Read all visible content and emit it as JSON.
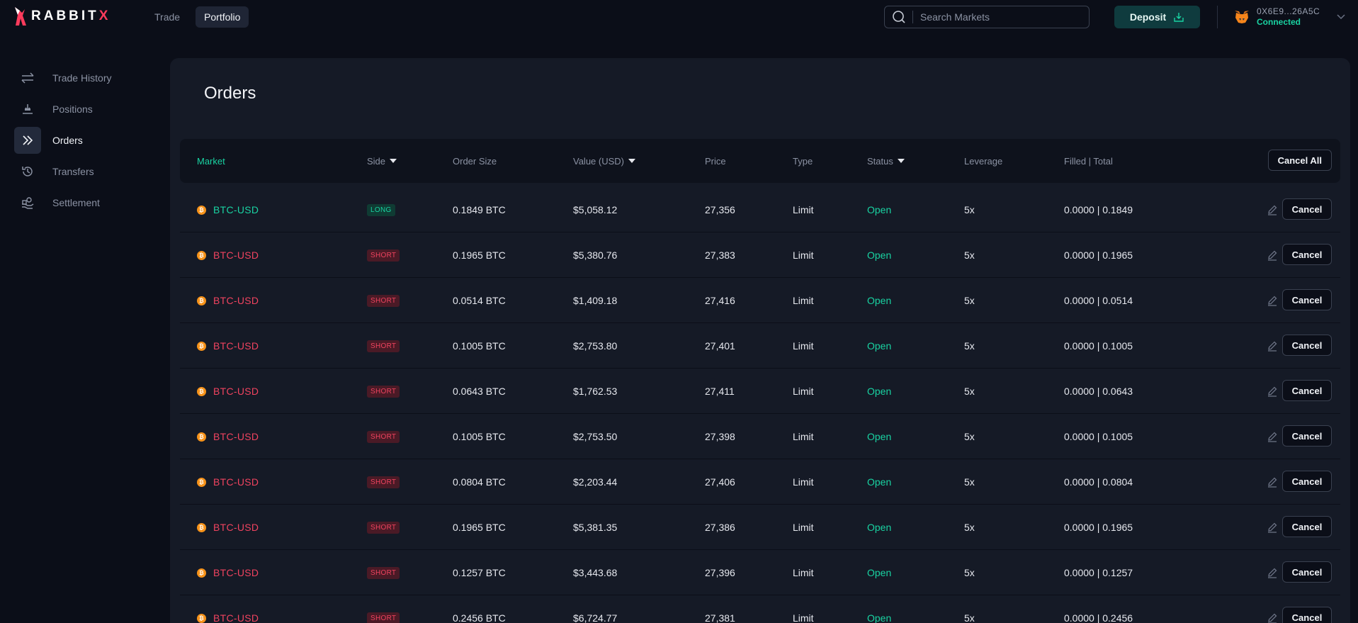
{
  "brand": {
    "name": "RABBIT",
    "name_x": "X"
  },
  "nav": [
    {
      "label": "Trade",
      "active": false
    },
    {
      "label": "Portfolio",
      "active": true
    }
  ],
  "search": {
    "placeholder": "Search Markets",
    "value": ""
  },
  "deposit": {
    "label": "Deposit"
  },
  "wallet": {
    "address": "0X6E9...26A5C",
    "status": "Connected"
  },
  "sidebar": [
    {
      "label": "Trade History",
      "icon": "arrows-swap-icon",
      "active": false
    },
    {
      "label": "Positions",
      "icon": "positions-icon",
      "active": false
    },
    {
      "label": "Orders",
      "icon": "double-chevron-right-icon",
      "active": true
    },
    {
      "label": "Transfers",
      "icon": "history-clock-icon",
      "active": false
    },
    {
      "label": "Settlement",
      "icon": "settlement-icon",
      "active": false
    }
  ],
  "page": {
    "title": "Orders"
  },
  "table": {
    "headers": {
      "market": "Market",
      "side": "Side",
      "order_size": "Order Size",
      "value": "Value (USD)",
      "price": "Price",
      "type": "Type",
      "status": "Status",
      "leverage": "Leverage",
      "filled": "Filled | Total"
    },
    "cancel_all": "Cancel All",
    "cancel_label": "Cancel",
    "rows": [
      {
        "market": "BTC-USD",
        "side": "LONG",
        "size": "0.1849 BTC",
        "value": "$5,058.12",
        "price": "27,356",
        "type": "Limit",
        "status": "Open",
        "leverage": "5x",
        "filled": "0.0000 | 0.1849"
      },
      {
        "market": "BTC-USD",
        "side": "SHORT",
        "size": "0.1965 BTC",
        "value": "$5,380.76",
        "price": "27,383",
        "type": "Limit",
        "status": "Open",
        "leverage": "5x",
        "filled": "0.0000 | 0.1965"
      },
      {
        "market": "BTC-USD",
        "side": "SHORT",
        "size": "0.0514 BTC",
        "value": "$1,409.18",
        "price": "27,416",
        "type": "Limit",
        "status": "Open",
        "leverage": "5x",
        "filled": "0.0000 | 0.0514"
      },
      {
        "market": "BTC-USD",
        "side": "SHORT",
        "size": "0.1005 BTC",
        "value": "$2,753.80",
        "price": "27,401",
        "type": "Limit",
        "status": "Open",
        "leverage": "5x",
        "filled": "0.0000 | 0.1005"
      },
      {
        "market": "BTC-USD",
        "side": "SHORT",
        "size": "0.0643 BTC",
        "value": "$1,762.53",
        "price": "27,411",
        "type": "Limit",
        "status": "Open",
        "leverage": "5x",
        "filled": "0.0000 | 0.0643"
      },
      {
        "market": "BTC-USD",
        "side": "SHORT",
        "size": "0.1005 BTC",
        "value": "$2,753.50",
        "price": "27,398",
        "type": "Limit",
        "status": "Open",
        "leverage": "5x",
        "filled": "0.0000 | 0.1005"
      },
      {
        "market": "BTC-USD",
        "side": "SHORT",
        "size": "0.0804 BTC",
        "value": "$2,203.44",
        "price": "27,406",
        "type": "Limit",
        "status": "Open",
        "leverage": "5x",
        "filled": "0.0000 | 0.0804"
      },
      {
        "market": "BTC-USD",
        "side": "SHORT",
        "size": "0.1965 BTC",
        "value": "$5,381.35",
        "price": "27,386",
        "type": "Limit",
        "status": "Open",
        "leverage": "5x",
        "filled": "0.0000 | 0.1965"
      },
      {
        "market": "BTC-USD",
        "side": "SHORT",
        "size": "0.1257 BTC",
        "value": "$3,443.68",
        "price": "27,396",
        "type": "Limit",
        "status": "Open",
        "leverage": "5x",
        "filled": "0.0000 | 0.1257"
      },
      {
        "market": "BTC-USD",
        "side": "SHORT",
        "size": "0.2456 BTC",
        "value": "$6,724.77",
        "price": "27,381",
        "type": "Limit",
        "status": "Open",
        "leverage": "5x",
        "filled": "0.0000 | 0.2456"
      }
    ]
  },
  "colors": {
    "accent_green": "#19d3a2",
    "accent_red": "#f0435f",
    "bg": "#0b0e18",
    "panel": "#151a26"
  }
}
